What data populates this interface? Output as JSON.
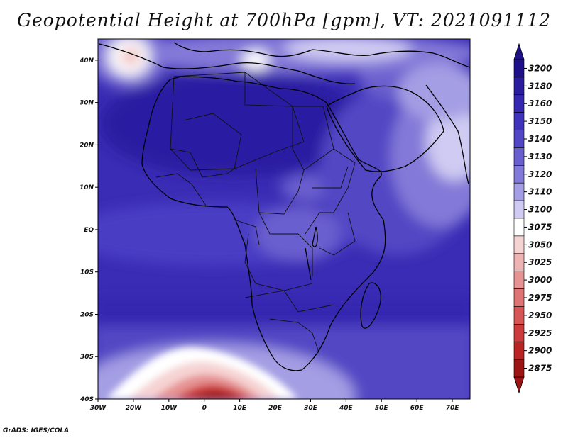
{
  "title": "Geopotential Height at 700hPa [gpm], VT: 2021091112",
  "credit": "GrADS: IGES/COLA",
  "map": {
    "lon_range": [
      -30,
      75
    ],
    "lat_range": [
      -40,
      45
    ],
    "lon_ticks": [
      {
        "value": -30,
        "label": "30W"
      },
      {
        "value": -20,
        "label": "20W"
      },
      {
        "value": -10,
        "label": "10W"
      },
      {
        "value": 0,
        "label": "0"
      },
      {
        "value": 10,
        "label": "10E"
      },
      {
        "value": 20,
        "label": "20E"
      },
      {
        "value": 30,
        "label": "30E"
      },
      {
        "value": 40,
        "label": "40E"
      },
      {
        "value": 50,
        "label": "50E"
      },
      {
        "value": 60,
        "label": "60E"
      },
      {
        "value": 70,
        "label": "70E"
      }
    ],
    "lat_ticks": [
      {
        "value": 40,
        "label": "40N"
      },
      {
        "value": 30,
        "label": "30N"
      },
      {
        "value": 20,
        "label": "20N"
      },
      {
        "value": 10,
        "label": "10N"
      },
      {
        "value": 0,
        "label": "EQ"
      },
      {
        "value": -10,
        "label": "10S"
      },
      {
        "value": -20,
        "label": "20S"
      },
      {
        "value": -30,
        "label": "30S"
      },
      {
        "value": -40,
        "label": "40S"
      }
    ]
  },
  "colorbar": {
    "levels": [
      {
        "label": "3200",
        "color": "#1e1089"
      },
      {
        "label": "3180",
        "color": "#2a1c9c"
      },
      {
        "label": "3160",
        "color": "#3527b0"
      },
      {
        "label": "3150",
        "color": "#4033bb"
      },
      {
        "label": "3140",
        "color": "#5246c4"
      },
      {
        "label": "3130",
        "color": "#6a5fce"
      },
      {
        "label": "3120",
        "color": "#8379d8"
      },
      {
        "label": "3110",
        "color": "#a49ee4"
      },
      {
        "label": "3100",
        "color": "#cfcbf2"
      },
      {
        "label": "3075",
        "color": "#ffffff"
      },
      {
        "label": "3050",
        "color": "#f6d3d3"
      },
      {
        "label": "3025",
        "color": "#eeb3b3"
      },
      {
        "label": "3000",
        "color": "#e69393"
      },
      {
        "label": "2975",
        "color": "#de7474"
      },
      {
        "label": "2950",
        "color": "#d65555"
      },
      {
        "label": "2925",
        "color": "#cc3c3c"
      },
      {
        "label": "2900",
        "color": "#b82424"
      },
      {
        "label": "2875",
        "color": "#9c1414"
      }
    ]
  }
}
